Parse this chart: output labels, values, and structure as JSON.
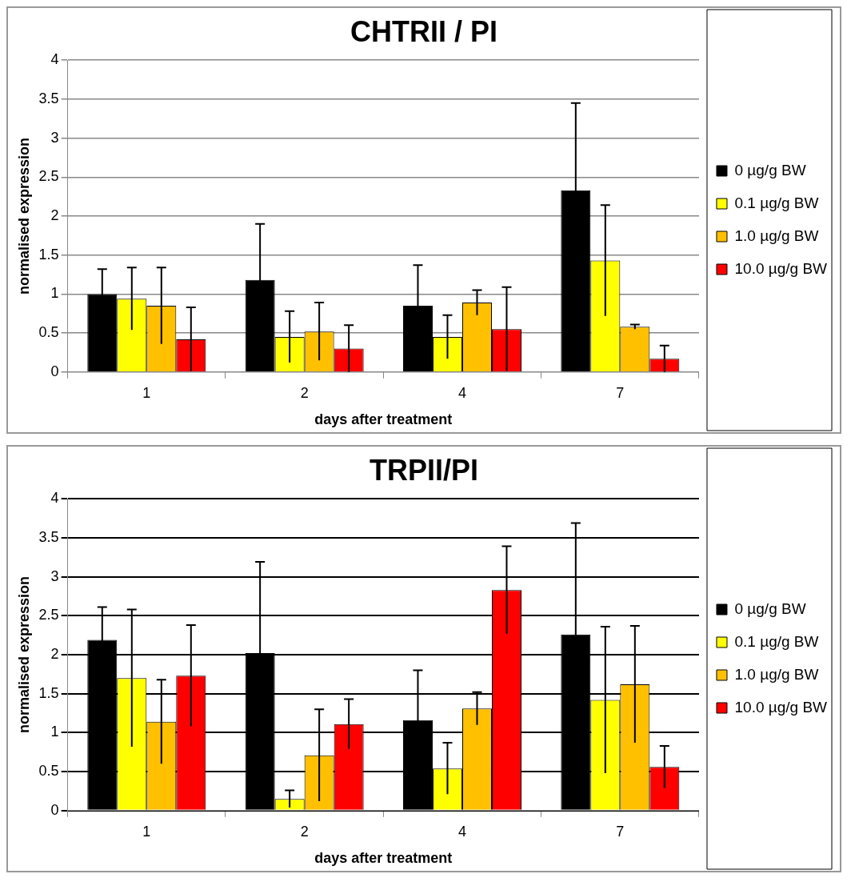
{
  "chart_data": [
    {
      "type": "bar",
      "title": "CHTRII / PI",
      "xlabel": "days after treatment",
      "ylabel": "normalised expression",
      "categories": [
        "1",
        "2",
        "4",
        "7"
      ],
      "series": [
        {
          "name": "0 µg/g BW",
          "color": "#000000",
          "values": [
            1.0,
            1.18,
            0.85,
            2.33
          ],
          "errors": [
            0.32,
            0.72,
            0.52,
            1.12
          ]
        },
        {
          "name": "0.1 µg/g BW",
          "color": "#ffff00",
          "values": [
            0.94,
            0.45,
            0.45,
            1.43
          ],
          "errors": [
            0.4,
            0.33,
            0.28,
            0.71
          ]
        },
        {
          "name": "1.0 µg/g BW",
          "color": "#ffc000",
          "values": [
            0.85,
            0.52,
            0.89,
            0.58
          ],
          "errors": [
            0.49,
            0.37,
            0.16,
            0.03
          ]
        },
        {
          "name": "10.0 µg/g BW",
          "color": "#ff0000",
          "values": [
            0.42,
            0.3,
            0.55,
            0.17
          ],
          "errors": [
            0.41,
            0.3,
            0.54,
            0.17
          ]
        }
      ],
      "ylim": [
        0,
        4
      ],
      "yticks": [
        0,
        0.5,
        1,
        1.5,
        2,
        2.5,
        3,
        3.5,
        4
      ],
      "grid": "y",
      "legend": "right"
    },
    {
      "type": "bar",
      "title": "TRPII/PI",
      "xlabel": "days after treatment",
      "ylabel": "normalised expression",
      "categories": [
        "1",
        "2",
        "4",
        "7"
      ],
      "series": [
        {
          "name": "0 µg/g BW",
          "color": "#000000",
          "values": [
            2.19,
            2.02,
            1.16,
            2.26
          ],
          "errors": [
            0.42,
            1.17,
            0.64,
            1.43
          ]
        },
        {
          "name": "0.1 µg/g BW",
          "color": "#ffff00",
          "values": [
            1.7,
            0.15,
            0.54,
            1.42
          ],
          "errors": [
            0.88,
            0.11,
            0.33,
            0.94
          ]
        },
        {
          "name": "1.0 µg/g BW",
          "color": "#ffc000",
          "values": [
            1.14,
            0.71,
            1.31,
            1.62
          ],
          "errors": [
            0.54,
            0.59,
            0.21,
            0.75
          ]
        },
        {
          "name": "10.0 µg/g BW",
          "color": "#ff0000",
          "values": [
            1.73,
            1.11,
            2.83,
            0.56
          ],
          "errors": [
            0.65,
            0.32,
            0.56,
            0.27
          ]
        }
      ],
      "ylim": [
        0,
        4
      ],
      "yticks": [
        0,
        0.5,
        1,
        1.5,
        2,
        2.5,
        3,
        3.5,
        4
      ],
      "grid": "y",
      "legend": "right"
    }
  ]
}
